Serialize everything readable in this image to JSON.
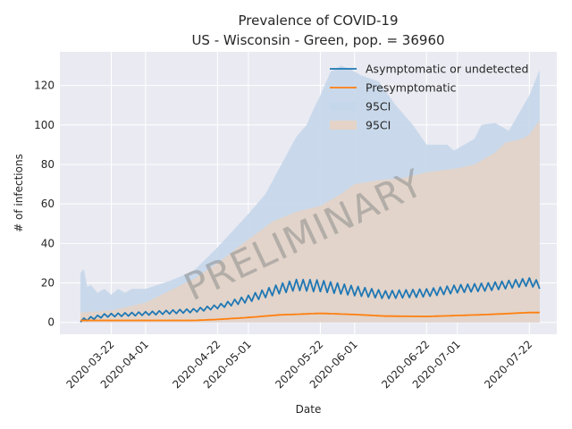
{
  "chart_data": {
    "type": "line",
    "title": "Prevalence of COVID-19",
    "subtitle": "US - Wisconsin - Green, pop. = 36960",
    "xlabel": "Date",
    "ylabel": "# of infections",
    "x_range": [
      "2020-03-07",
      "2020-07-30"
    ],
    "data_range": [
      "2020-03-13",
      "2020-07-25"
    ],
    "ylim": [
      -6,
      137
    ],
    "yticks": [
      0,
      20,
      40,
      60,
      80,
      100,
      120
    ],
    "xticks": [
      "2020-03-22",
      "2020-04-01",
      "2020-04-22",
      "2020-05-01",
      "2020-05-22",
      "2020-06-01",
      "2020-06-22",
      "2020-07-01",
      "2020-07-22"
    ],
    "grid": true,
    "legend_position": "top-right",
    "watermark": "PRELIMINARY",
    "colors": {
      "asymptomatic": "#1f77b4",
      "presymptomatic": "#ff7f0e",
      "ci_asymptomatic": "#c5d7ea",
      "ci_presymptomatic": "#e4d3c6",
      "plot_bg": "#eaeaf2",
      "grid": "#ffffff"
    },
    "legend": [
      {
        "label": "Asymptomatic or undetected",
        "kind": "line",
        "color": "#1f77b4"
      },
      {
        "label": "Presymptomatic",
        "kind": "line",
        "color": "#ff7f0e"
      },
      {
        "label": "95CI",
        "kind": "patch",
        "color": "#c5d7ea"
      },
      {
        "label": "95CI",
        "kind": "patch",
        "color": "#e4d3c6"
      }
    ],
    "series": [
      {
        "name": "Asymptomatic or undetected",
        "points": [
          [
            "2020-03-13",
            1
          ],
          [
            "2020-03-20",
            3.5
          ],
          [
            "2020-04-01",
            4.5
          ],
          [
            "2020-04-15",
            6
          ],
          [
            "2020-04-22",
            8
          ],
          [
            "2020-05-01",
            12
          ],
          [
            "2020-05-10",
            17
          ],
          [
            "2020-05-15",
            19
          ],
          [
            "2020-05-22",
            18.5
          ],
          [
            "2020-06-01",
            16
          ],
          [
            "2020-06-10",
            14
          ],
          [
            "2020-06-22",
            15
          ],
          [
            "2020-07-01",
            17
          ],
          [
            "2020-07-10",
            18
          ],
          [
            "2020-07-22",
            20.5
          ],
          [
            "2020-07-25",
            19
          ]
        ],
        "oscillation": {
          "period_days": 2,
          "amplitude": [
            [
              "2020-03-13",
              0.8
            ],
            [
              "2020-04-22",
              1
            ],
            [
              "2020-05-10",
              2.5
            ],
            [
              "2020-05-20",
              3
            ],
            [
              "2020-06-10",
              2
            ],
            [
              "2020-07-25",
              2
            ]
          ]
        }
      },
      {
        "name": "Presymptomatic",
        "points": [
          [
            "2020-03-13",
            1
          ],
          [
            "2020-04-01",
            1
          ],
          [
            "2020-04-15",
            1
          ],
          [
            "2020-04-22",
            1.5
          ],
          [
            "2020-05-01",
            2.5
          ],
          [
            "2020-05-10",
            3.8
          ],
          [
            "2020-05-22",
            4.6
          ],
          [
            "2020-06-01",
            4
          ],
          [
            "2020-06-10",
            3.2
          ],
          [
            "2020-06-22",
            3
          ],
          [
            "2020-07-01",
            3.5
          ],
          [
            "2020-07-10",
            4
          ],
          [
            "2020-07-22",
            5
          ],
          [
            "2020-07-25",
            5
          ]
        ]
      }
    ],
    "ci_bands": [
      {
        "name": "95CI",
        "lower": 0,
        "upper": [
          [
            "2020-03-13",
            25
          ],
          [
            "2020-03-14",
            27
          ],
          [
            "2020-03-15",
            18
          ],
          [
            "2020-03-16",
            19
          ],
          [
            "2020-03-18",
            15
          ],
          [
            "2020-03-20",
            17
          ],
          [
            "2020-03-22",
            14
          ],
          [
            "2020-03-24",
            17
          ],
          [
            "2020-03-26",
            15
          ],
          [
            "2020-03-28",
            17
          ],
          [
            "2020-04-01",
            17
          ],
          [
            "2020-04-08",
            21
          ],
          [
            "2020-04-15",
            26
          ],
          [
            "2020-04-22",
            38
          ],
          [
            "2020-05-01",
            55
          ],
          [
            "2020-05-06",
            65
          ],
          [
            "2020-05-10",
            78
          ],
          [
            "2020-05-15",
            94
          ],
          [
            "2020-05-18",
            100
          ],
          [
            "2020-05-20",
            108
          ],
          [
            "2020-05-22",
            115
          ],
          [
            "2020-05-25",
            127
          ],
          [
            "2020-05-28",
            130
          ],
          [
            "2020-05-31",
            128
          ],
          [
            "2020-06-03",
            125
          ],
          [
            "2020-06-08",
            122
          ],
          [
            "2020-06-13",
            110
          ],
          [
            "2020-06-18",
            100
          ],
          [
            "2020-06-22",
            90
          ],
          [
            "2020-06-28",
            90
          ],
          [
            "2020-06-30",
            87
          ],
          [
            "2020-07-03",
            90
          ],
          [
            "2020-07-06",
            93
          ],
          [
            "2020-07-08",
            100
          ],
          [
            "2020-07-12",
            101
          ],
          [
            "2020-07-16",
            97
          ],
          [
            "2020-07-22",
            115
          ],
          [
            "2020-07-25",
            128
          ]
        ]
      },
      {
        "name": "95CI",
        "lower": 0,
        "upper": [
          [
            "2020-03-13",
            5
          ],
          [
            "2020-03-22",
            6
          ],
          [
            "2020-04-01",
            10
          ],
          [
            "2020-04-15",
            22
          ],
          [
            "2020-04-22",
            30
          ],
          [
            "2020-05-01",
            42
          ],
          [
            "2020-05-08",
            51
          ],
          [
            "2020-05-15",
            56
          ],
          [
            "2020-05-22",
            59
          ],
          [
            "2020-05-28",
            65
          ],
          [
            "2020-06-01",
            70
          ],
          [
            "2020-06-08",
            72
          ],
          [
            "2020-06-15",
            73
          ],
          [
            "2020-06-22",
            76
          ],
          [
            "2020-07-01",
            78
          ],
          [
            "2020-07-06",
            80
          ],
          [
            "2020-07-12",
            86
          ],
          [
            "2020-07-15",
            91
          ],
          [
            "2020-07-20",
            93
          ],
          [
            "2020-07-22",
            95
          ],
          [
            "2020-07-24",
            100
          ],
          [
            "2020-07-25",
            102
          ]
        ]
      }
    ]
  }
}
